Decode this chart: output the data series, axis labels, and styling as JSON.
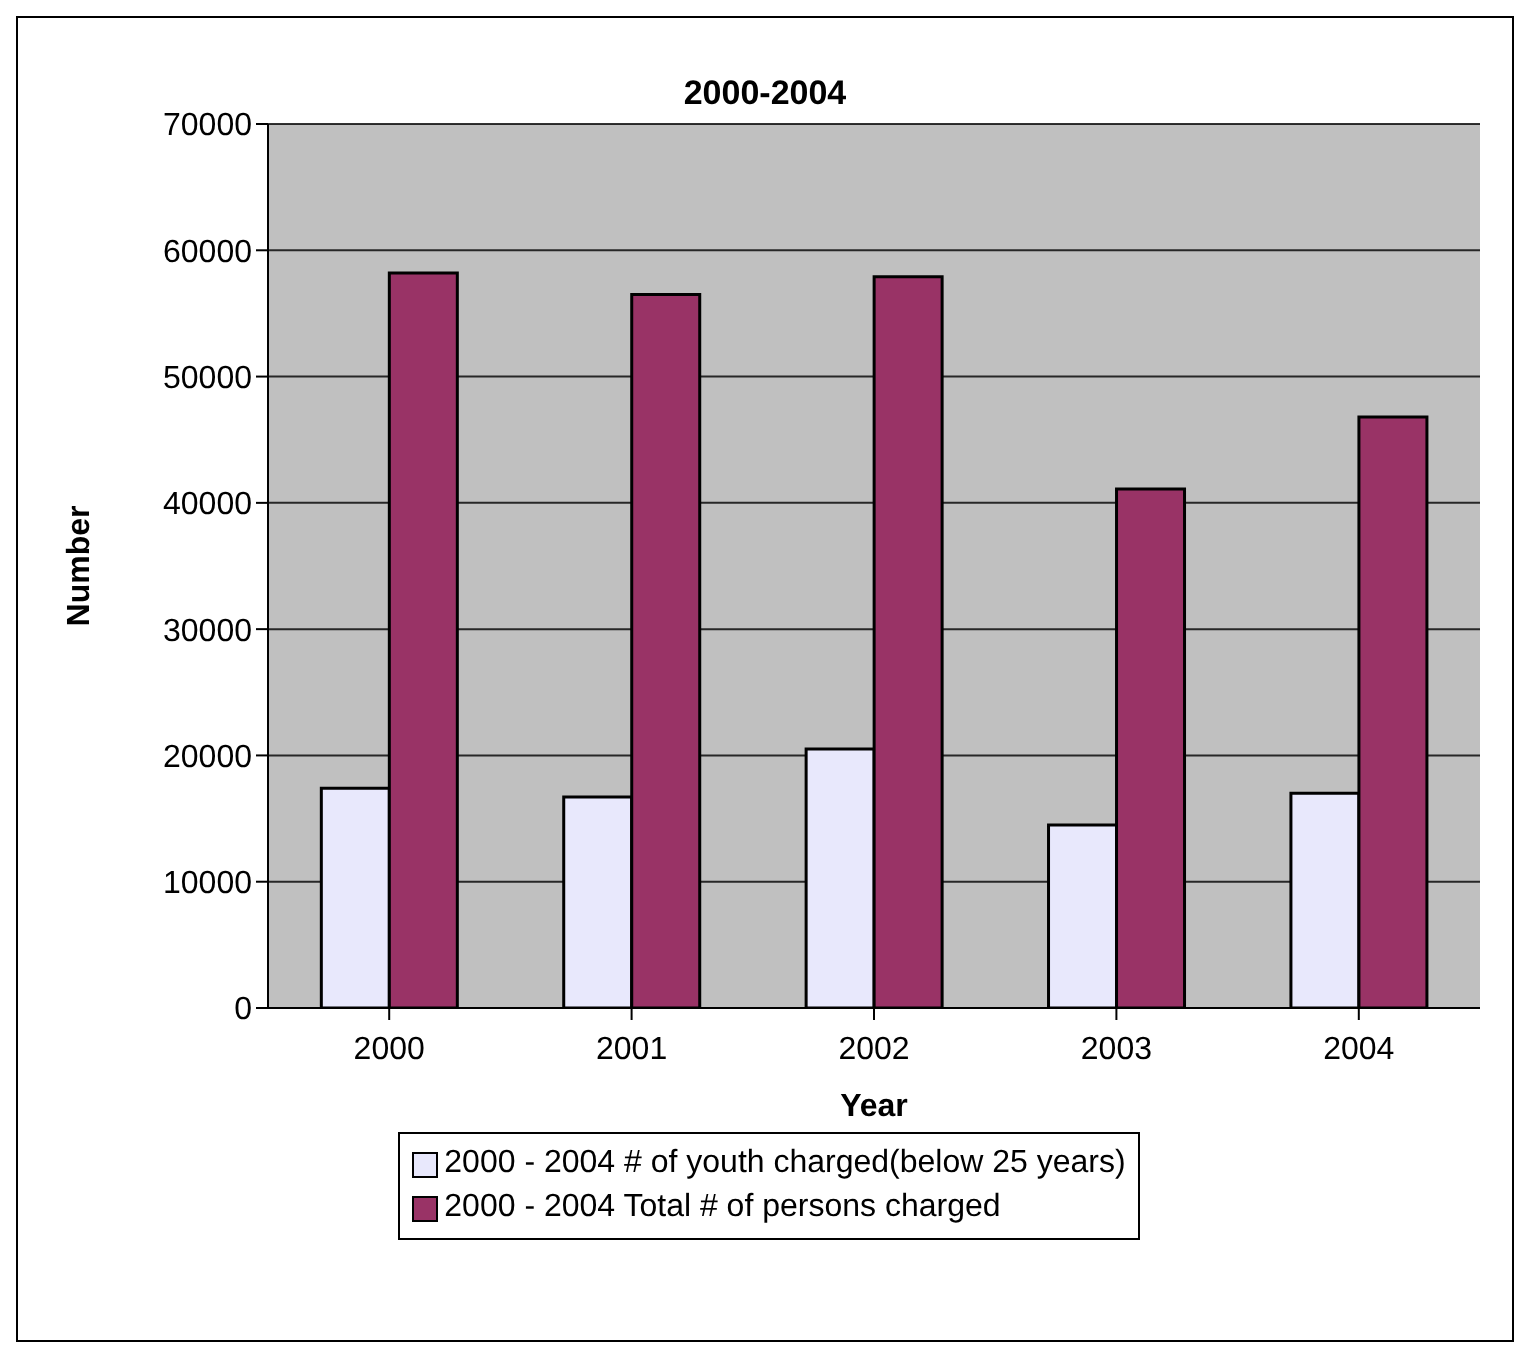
{
  "chart_data": {
    "type": "bar",
    "title": "2000-2004",
    "xlabel": "Year",
    "ylabel": "Number",
    "categories": [
      "2000",
      "2001",
      "2002",
      "2003",
      "2004"
    ],
    "series": [
      {
        "name": "2000 - 2004 # of youth charged(below 25 years)",
        "color": "#e8e8fc",
        "values": [
          17400,
          16700,
          20500,
          14500,
          17000
        ]
      },
      {
        "name": "2000 - 2004 Total # of persons charged",
        "color": "#993366",
        "values": [
          58200,
          56500,
          57900,
          41100,
          46800
        ]
      }
    ],
    "ylim": [
      0,
      70000
    ],
    "yticks": [
      0,
      10000,
      20000,
      30000,
      40000,
      50000,
      60000,
      70000
    ],
    "grid": "y",
    "legend": "bottom"
  }
}
